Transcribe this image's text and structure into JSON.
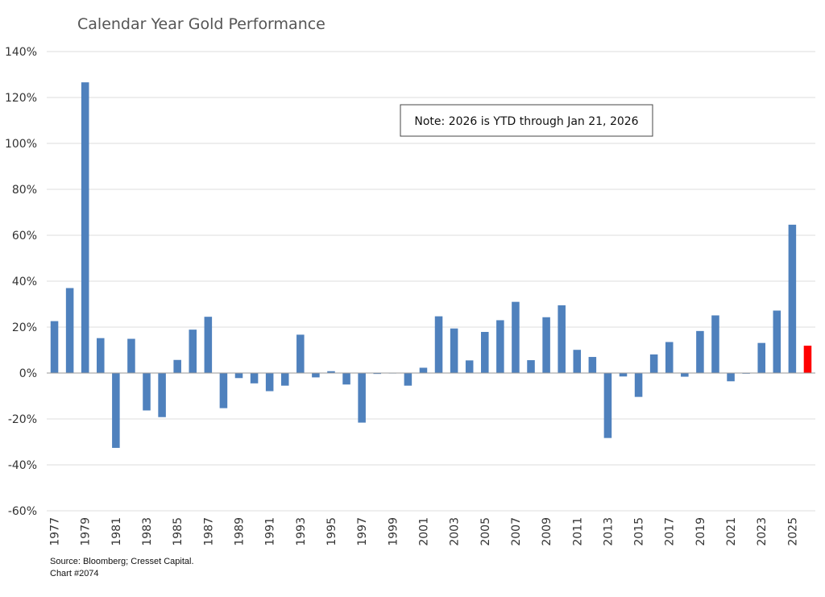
{
  "chart_data": {
    "type": "bar",
    "title": "Calendar Year Gold Performance",
    "xlabel": "",
    "ylabel": "",
    "ylim": [
      -60,
      140
    ],
    "ytick_step": 20,
    "y_tick_format": "percent",
    "grid": true,
    "x_tick_labels": [
      "1977",
      "1979",
      "1981",
      "1983",
      "1985",
      "1987",
      "1989",
      "1991",
      "1993",
      "1995",
      "1997",
      "1999",
      "2001",
      "2003",
      "2005",
      "2007",
      "2009",
      "2011",
      "2013",
      "2015",
      "2017",
      "2019",
      "2021",
      "2023",
      "2025"
    ],
    "categories": [
      "1977",
      "1978",
      "1979",
      "1980",
      "1981",
      "1982",
      "1983",
      "1984",
      "1985",
      "1986",
      "1987",
      "1988",
      "1989",
      "1990",
      "1991",
      "1992",
      "1993",
      "1994",
      "1995",
      "1996",
      "1997",
      "1998",
      "1999",
      "2000",
      "2001",
      "2002",
      "2003",
      "2004",
      "2005",
      "2006",
      "2007",
      "2008",
      "2009",
      "2010",
      "2011",
      "2012",
      "2013",
      "2014",
      "2015",
      "2016",
      "2017",
      "2018",
      "2019",
      "2020",
      "2021",
      "2022",
      "2023",
      "2024",
      "2025",
      "2026"
    ],
    "values": [
      22.6,
      37.0,
      126.6,
      15.2,
      -32.6,
      14.9,
      -16.3,
      -19.2,
      5.7,
      18.9,
      24.5,
      -15.3,
      -2.2,
      -4.5,
      -7.9,
      -5.5,
      16.7,
      -1.9,
      0.8,
      -5.0,
      -21.6,
      -0.4,
      0.0,
      -5.5,
      2.3,
      24.7,
      19.4,
      5.5,
      17.9,
      23.0,
      31.0,
      5.6,
      24.3,
      29.5,
      10.1,
      7.0,
      -28.3,
      -1.5,
      -10.4,
      8.1,
      13.5,
      -1.6,
      18.3,
      25.1,
      -3.6,
      -0.3,
      13.1,
      27.2,
      64.6,
      11.9
    ],
    "bar_color": "#4F81BD",
    "highlight": {
      "category": "2026",
      "color": "#FF0000"
    },
    "note": "Note: 2026 is YTD through Jan 21, 2026",
    "source": "Source: Bloomberg; Cresset Capital.",
    "chart_id": "Chart #2074"
  }
}
